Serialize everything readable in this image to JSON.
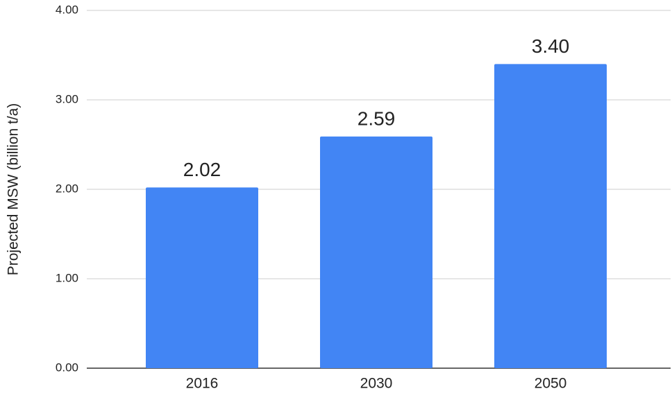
{
  "chart_data": {
    "type": "bar",
    "y_label": "Projected MSW (billion t/a)",
    "categories": [
      "2016",
      "2030",
      "2050"
    ],
    "values": [
      2.02,
      2.59,
      3.4
    ],
    "value_labels": [
      "2.02",
      "2.59",
      "3.40"
    ],
    "color": "#4285f4",
    "ylim": [
      0,
      4
    ],
    "yticks": [
      {
        "value": 0,
        "label": "0.00"
      },
      {
        "value": 1,
        "label": "1.00"
      },
      {
        "value": 2,
        "label": "2.00"
      },
      {
        "value": 3,
        "label": "3.00"
      },
      {
        "value": 4,
        "label": "4.00"
      }
    ],
    "grid": true
  }
}
